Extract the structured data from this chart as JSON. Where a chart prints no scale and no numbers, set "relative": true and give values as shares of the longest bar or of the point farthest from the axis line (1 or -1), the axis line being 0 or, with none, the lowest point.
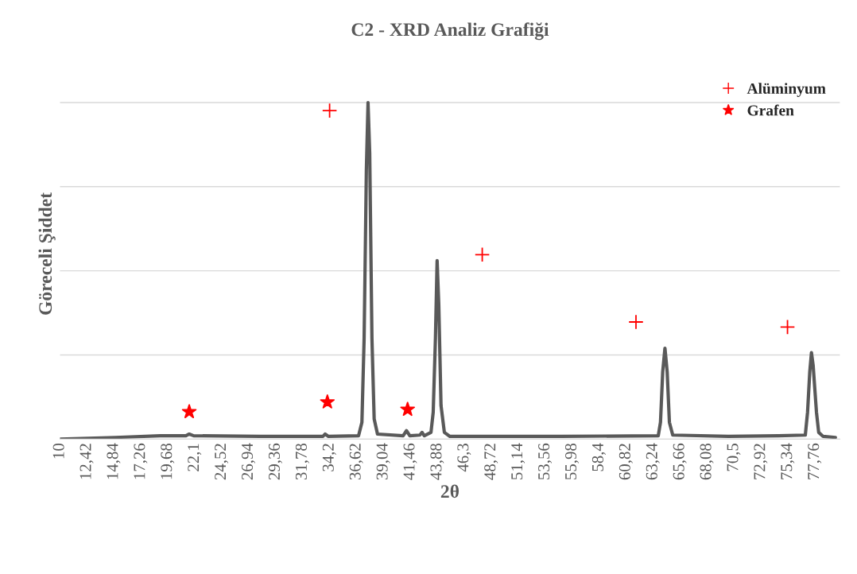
{
  "chart_data": {
    "type": "line",
    "title": "C2 - XRD Analiz Grafiği",
    "xlabel": "2θ",
    "ylabel": "Göreceli Şiddet",
    "relative": true,
    "grid": "y",
    "legend": "top right",
    "tick_labels": "x",
    "xlim": [
      10,
      80
    ],
    "xticks": [
      10,
      {
        "value": 12.42,
        "label": "12,42"
      },
      {
        "value": 14.84,
        "label": "14,84"
      },
      {
        "value": 17.26,
        "label": "17,26"
      },
      {
        "value": 19.68,
        "label": "19,68"
      },
      {
        "value": 22.1,
        "label": "22,1"
      },
      {
        "value": 24.52,
        "label": "24,52"
      },
      {
        "value": 26.94,
        "label": "26,94"
      },
      {
        "value": 29.36,
        "label": "29,36"
      },
      {
        "value": 31.78,
        "label": "31,78"
      },
      {
        "value": 34.2,
        "label": "34,2"
      },
      {
        "value": 36.62,
        "label": "36,62"
      },
      {
        "value": 39.04,
        "label": "39,04"
      },
      {
        "value": 41.46,
        "label": "41,46"
      },
      {
        "value": 43.88,
        "label": "43,88"
      },
      {
        "value": 46.3,
        "label": "46,3"
      },
      {
        "value": 48.72,
        "label": "48,72"
      },
      {
        "value": 51.14,
        "label": "51,14"
      },
      {
        "value": 53.56,
        "label": "53,56"
      },
      {
        "value": 55.98,
        "label": "55,98"
      },
      {
        "value": 58.4,
        "label": "58,4"
      },
      {
        "value": 60.82,
        "label": "60,82"
      },
      {
        "value": 63.24,
        "label": "63,24"
      },
      {
        "value": 65.66,
        "label": "65,66"
      },
      {
        "value": 68.08,
        "label": "68,08"
      },
      {
        "value": 70.5,
        "label": "70,5"
      },
      {
        "value": 72.92,
        "label": "72,92"
      },
      {
        "value": 75.34,
        "label": "75,34"
      },
      {
        "value": 77.76,
        "label": "77,76"
      }
    ],
    "series": [
      {
        "color": "#595959",
        "marker": "none",
        "line_style": "solid",
        "x": [
          10,
          15,
          19,
          21.3,
          21.6,
          22,
          28,
          33.6,
          33.8,
          34.1,
          36.8,
          37.1,
          37.3,
          37.5,
          37.65,
          37.8,
          38.0,
          38.2,
          38.5,
          40.8,
          41.1,
          41.4,
          42.3,
          42.5,
          42.7,
          43.3,
          43.5,
          43.7,
          43.85,
          44.0,
          44.2,
          44.5,
          45,
          55,
          63.7,
          63.9,
          64.1,
          64.3,
          64.5,
          64.7,
          65,
          70,
          74.5,
          76.9,
          77.1,
          77.3,
          77.45,
          77.6,
          77.75,
          77.9,
          78.1,
          78.5,
          79.6
        ],
        "values": [
          0.0,
          0.005,
          0.01,
          0.01,
          0.015,
          0.01,
          0.008,
          0.008,
          0.015,
          0.008,
          0.01,
          0.05,
          0.3,
          0.8,
          1.0,
          0.85,
          0.3,
          0.06,
          0.015,
          0.01,
          0.025,
          0.01,
          0.012,
          0.02,
          0.01,
          0.02,
          0.08,
          0.3,
          0.53,
          0.4,
          0.1,
          0.02,
          0.008,
          0.008,
          0.01,
          0.05,
          0.2,
          0.27,
          0.2,
          0.05,
          0.012,
          0.008,
          0.01,
          0.012,
          0.08,
          0.2,
          0.257,
          0.22,
          0.15,
          0.08,
          0.02,
          0.008,
          0.005
        ]
      },
      {
        "type": "scatter",
        "name": "Alüminyum",
        "color": "#ff0000",
        "marker": "cross",
        "x": [
          34.2,
          47.9,
          61.7,
          75.3
        ],
        "values": [
          0.976,
          0.548,
          0.348,
          0.333
        ]
      },
      {
        "type": "scatter",
        "name": "Grafen",
        "color": "#ff0000",
        "marker": "star",
        "x": [
          21.6,
          34.0,
          41.2
        ],
        "values": [
          0.081,
          0.11,
          0.088
        ]
      }
    ]
  }
}
